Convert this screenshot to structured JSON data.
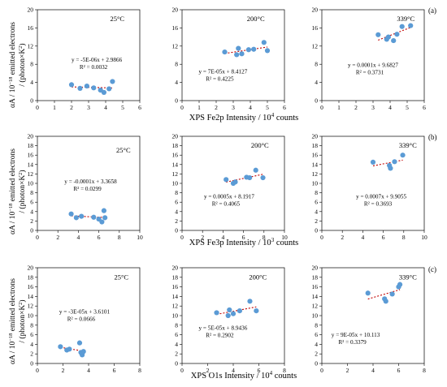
{
  "colors": {
    "marker": "#5b9bd5",
    "trend": "#c00000",
    "axis": "#000000"
  },
  "rows": [
    {
      "panel_label": "(a)",
      "xlabel": "XPS Fe2p Intensity / 10",
      "xlabel_sup": "4",
      "xlabel_tail": " counts"
    },
    {
      "panel_label": "(b)",
      "xlabel": "XPS Fe3p Intensity / 10",
      "xlabel_sup": "3",
      "xlabel_tail": " counts"
    },
    {
      "panel_label": "(c)",
      "xlabel": "XPS O1s Intensity / 10",
      "xlabel_sup": "4",
      "xlabel_tail": " counts"
    }
  ],
  "ylabel": {
    "line1_pre": "αA / 10",
    "line1_sup": "−18",
    "line1_post": " emitted electrons",
    "line2_pre": "/ (photon×K",
    "line2_sup": "2",
    "line2_post": ")"
  },
  "chart_data": [
    {
      "type": "scatter",
      "row": 0,
      "temp": "25°C",
      "eq": "y = -5E-06x + 2.9866",
      "r2": "R² = 0.0032",
      "xlim": [
        0,
        6
      ],
      "ylim": [
        0,
        20
      ],
      "xticks": [
        0,
        1,
        2,
        3,
        4,
        5,
        6
      ],
      "yticks": [
        0,
        4,
        8,
        12,
        16,
        20
      ],
      "points": [
        [
          2.0,
          3.5
        ],
        [
          2.5,
          2.7
        ],
        [
          2.9,
          3.2
        ],
        [
          3.3,
          2.8
        ],
        [
          3.7,
          2.3
        ],
        [
          3.9,
          1.8
        ],
        [
          4.2,
          2.6
        ],
        [
          4.4,
          4.2
        ]
      ],
      "trend": [
        2.0,
        4.4
      ]
    },
    {
      "type": "scatter",
      "row": 0,
      "temp": "200°C",
      "eq": "y = 7E-05x + 8.4127",
      "r2": "R² = 0.4225",
      "xlim": [
        0,
        6
      ],
      "ylim": [
        0,
        20
      ],
      "xticks": [
        0,
        1,
        2,
        3,
        4,
        5,
        6
      ],
      "yticks": [
        0,
        4,
        8,
        12,
        16,
        20
      ],
      "points": [
        [
          2.5,
          10.7
        ],
        [
          3.2,
          10.1
        ],
        [
          3.3,
          11.5
        ],
        [
          3.5,
          10.3
        ],
        [
          3.9,
          11.2
        ],
        [
          4.2,
          11.3
        ],
        [
          4.8,
          12.8
        ],
        [
          5.0,
          11.0
        ]
      ],
      "trend": [
        2.5,
        5.0
      ]
    },
    {
      "type": "scatter",
      "row": 0,
      "temp": "339°C",
      "eq": "y = 0.0001x + 9.6827",
      "r2": "R² = 0.3731",
      "xlim": [
        0,
        6
      ],
      "ylim": [
        0,
        20
      ],
      "xticks": [
        0,
        1,
        2,
        3,
        4,
        5,
        6
      ],
      "yticks": [
        0,
        4,
        8,
        12,
        16,
        20
      ],
      "points": [
        [
          3.3,
          14.5
        ],
        [
          3.8,
          13.5
        ],
        [
          3.9,
          14.0
        ],
        [
          4.2,
          13.2
        ],
        [
          4.4,
          14.6
        ],
        [
          4.7,
          16.3
        ],
        [
          5.2,
          16.5
        ]
      ],
      "trend": [
        3.3,
        5.2
      ]
    },
    {
      "type": "scatter",
      "row": 1,
      "temp": "25°C",
      "eq": "y = -0.0001x + 3.3658",
      "r2": "R² = 0.0299",
      "xlim": [
        0,
        10
      ],
      "ylim": [
        0,
        20
      ],
      "xticks": [
        0,
        2,
        4,
        6,
        8,
        10
      ],
      "yticks": [
        0,
        2,
        4,
        6,
        8,
        10,
        12,
        14,
        16,
        18,
        20
      ],
      "points": [
        [
          3.3,
          3.5
        ],
        [
          3.8,
          2.7
        ],
        [
          4.3,
          3.0
        ],
        [
          5.5,
          2.8
        ],
        [
          6.0,
          2.4
        ],
        [
          6.3,
          1.8
        ],
        [
          6.5,
          4.2
        ],
        [
          6.6,
          2.7
        ]
      ],
      "trend": [
        3.3,
        6.6
      ]
    },
    {
      "type": "scatter",
      "row": 1,
      "temp": "200°C",
      "eq": "y = 0.0005x + 8.1917",
      "r2": "R² = 0.4065",
      "xlim": [
        0,
        10
      ],
      "ylim": [
        0,
        20
      ],
      "xticks": [
        0,
        2,
        4,
        6,
        8,
        10
      ],
      "yticks": [
        0,
        2,
        4,
        6,
        8,
        10,
        12,
        14,
        16,
        18,
        20
      ],
      "points": [
        [
          4.3,
          10.8
        ],
        [
          5.0,
          10.0
        ],
        [
          5.2,
          10.3
        ],
        [
          6.3,
          11.3
        ],
        [
          6.6,
          11.2
        ],
        [
          7.2,
          12.8
        ],
        [
          7.9,
          11.2
        ]
      ],
      "trend": [
        4.3,
        7.9
      ]
    },
    {
      "type": "scatter",
      "row": 1,
      "temp": "339°C",
      "eq": "y = 0.0007x + 9.9055",
      "r2": "R² = 0.3693",
      "xlim": [
        0,
        10
      ],
      "ylim": [
        0,
        20
      ],
      "xticks": [
        0,
        2,
        4,
        6,
        8,
        10
      ],
      "yticks": [
        0,
        2,
        4,
        6,
        8,
        10,
        12,
        14,
        16,
        18,
        20
      ],
      "points": [
        [
          5.0,
          14.5
        ],
        [
          6.6,
          13.8
        ],
        [
          6.7,
          13.2
        ],
        [
          7.1,
          14.6
        ],
        [
          7.9,
          16.0
        ]
      ],
      "trend": [
        5.0,
        7.9
      ]
    },
    {
      "type": "scatter",
      "row": 2,
      "temp": "25°C",
      "eq": "y = -3E-05x + 3.6101",
      "r2": "R² = 0.0666",
      "xlim": [
        0,
        8
      ],
      "ylim": [
        0,
        20
      ],
      "xticks": [
        0,
        2,
        4,
        6,
        8
      ],
      "yticks": [
        0,
        2,
        4,
        6,
        8,
        10,
        12,
        14,
        16,
        18,
        20
      ],
      "points": [
        [
          1.8,
          3.5
        ],
        [
          2.3,
          2.8
        ],
        [
          2.5,
          3.0
        ],
        [
          3.3,
          4.3
        ],
        [
          3.4,
          2.3
        ],
        [
          3.5,
          1.8
        ],
        [
          3.6,
          2.5
        ]
      ],
      "trend": [
        1.8,
        3.6
      ]
    },
    {
      "type": "scatter",
      "row": 2,
      "temp": "200°C",
      "eq": "y = 5E-05x + 8.9436",
      "r2": "R² = 0.2902",
      "xlim": [
        0,
        8
      ],
      "ylim": [
        0,
        20
      ],
      "xticks": [
        0,
        2,
        4,
        6,
        8
      ],
      "yticks": [
        0,
        2,
        4,
        6,
        8,
        10,
        12,
        14,
        16,
        18,
        20
      ],
      "points": [
        [
          2.7,
          10.6
        ],
        [
          3.6,
          10.0
        ],
        [
          3.7,
          11.2
        ],
        [
          4.0,
          10.4
        ],
        [
          4.5,
          11.0
        ],
        [
          5.3,
          13.0
        ],
        [
          5.8,
          11.0
        ]
      ],
      "trend": [
        2.7,
        5.8
      ]
    },
    {
      "type": "scatter",
      "row": 2,
      "temp": "339°C",
      "eq": "y = 9E-05x + 10.113",
      "r2": "R² = 0.3379",
      "xlim": [
        0,
        8
      ],
      "ylim": [
        0,
        20
      ],
      "xticks": [
        0,
        2,
        4,
        6,
        8
      ],
      "yticks": [
        0,
        2,
        4,
        6,
        8,
        10,
        12,
        14,
        16,
        18,
        20
      ],
      "points": [
        [
          3.6,
          14.7
        ],
        [
          4.9,
          13.5
        ],
        [
          5.0,
          13.0
        ],
        [
          5.5,
          14.5
        ],
        [
          6.0,
          16.0
        ],
        [
          6.1,
          16.5
        ]
      ],
      "trend": [
        3.6,
        6.1
      ]
    }
  ]
}
